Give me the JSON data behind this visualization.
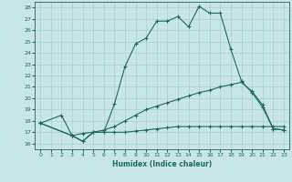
{
  "xlabel": "Humidex (Indice chaleur)",
  "background_color": "#c8e6e6",
  "grid_color": "#a8d0d0",
  "line_color": "#1a6b5a",
  "xlim": [
    -0.5,
    23.5
  ],
  "ylim": [
    15.5,
    28.5
  ],
  "xticks": [
    0,
    1,
    2,
    3,
    4,
    5,
    6,
    7,
    8,
    9,
    10,
    11,
    12,
    13,
    14,
    15,
    16,
    17,
    18,
    19,
    20,
    21,
    22,
    23
  ],
  "yticks": [
    16,
    17,
    18,
    19,
    20,
    21,
    22,
    23,
    24,
    25,
    26,
    27,
    28
  ],
  "line1_x": [
    0,
    2,
    3,
    4,
    5,
    6,
    7,
    8,
    9,
    10,
    11,
    12,
    13,
    14,
    15,
    16,
    17,
    18,
    19,
    20,
    21,
    22,
    23
  ],
  "line1_y": [
    17.8,
    18.5,
    16.7,
    16.9,
    17.0,
    17.0,
    19.5,
    22.8,
    24.8,
    25.3,
    26.8,
    26.8,
    27.2,
    26.3,
    28.1,
    27.5,
    27.5,
    24.3,
    21.5,
    20.5,
    19.2,
    17.3,
    17.2
  ],
  "line2_x": [
    0,
    3,
    4,
    5,
    6,
    7,
    8,
    9,
    10,
    11,
    12,
    13,
    14,
    15,
    16,
    17,
    18,
    19,
    20,
    21,
    22,
    23
  ],
  "line2_y": [
    17.8,
    16.7,
    16.2,
    17.0,
    17.0,
    17.0,
    17.0,
    17.1,
    17.2,
    17.3,
    17.4,
    17.5,
    17.5,
    17.5,
    17.5,
    17.5,
    17.5,
    17.5,
    17.5,
    17.5,
    17.5,
    17.5
  ],
  "line3_x": [
    0,
    3,
    4,
    5,
    6,
    7,
    8,
    9,
    10,
    11,
    12,
    13,
    14,
    15,
    16,
    17,
    18,
    19,
    20,
    21,
    22,
    23
  ],
  "line3_y": [
    17.8,
    16.7,
    16.2,
    17.0,
    17.2,
    17.5,
    18.0,
    18.5,
    19.0,
    19.3,
    19.6,
    19.9,
    20.2,
    20.5,
    20.7,
    21.0,
    21.2,
    21.4,
    20.6,
    19.4,
    17.3,
    17.2
  ]
}
